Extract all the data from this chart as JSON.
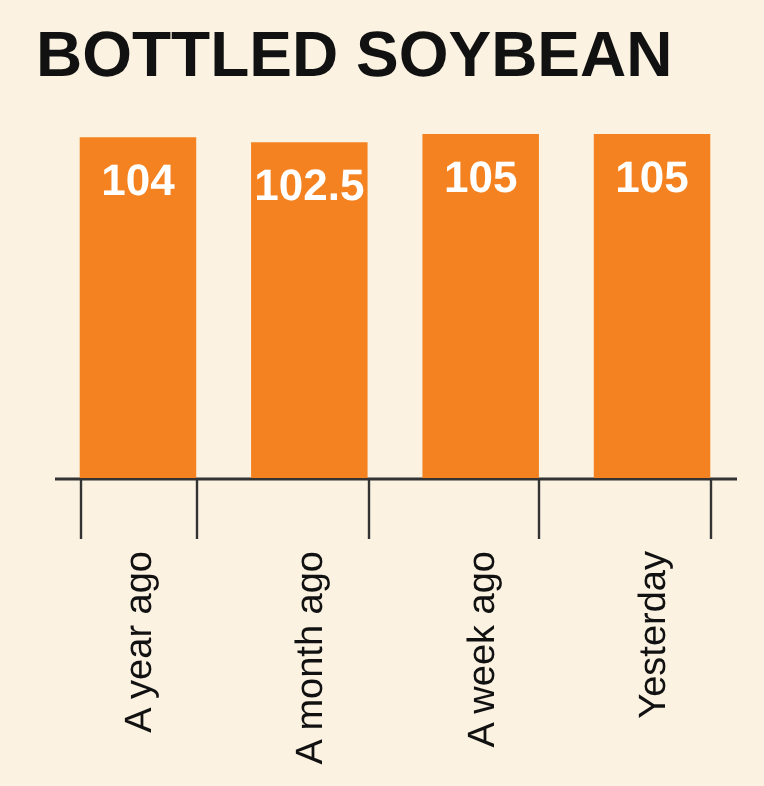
{
  "chart_data": {
    "type": "bar",
    "title": "BOTTLED SOYBEAN",
    "categories": [
      "A year ago",
      "A month ago",
      "A week ago",
      "Yesterday"
    ],
    "values": [
      104,
      102.5,
      105,
      105
    ],
    "color": "#f58220",
    "tick_labels": "x",
    "data_labels": true
  }
}
